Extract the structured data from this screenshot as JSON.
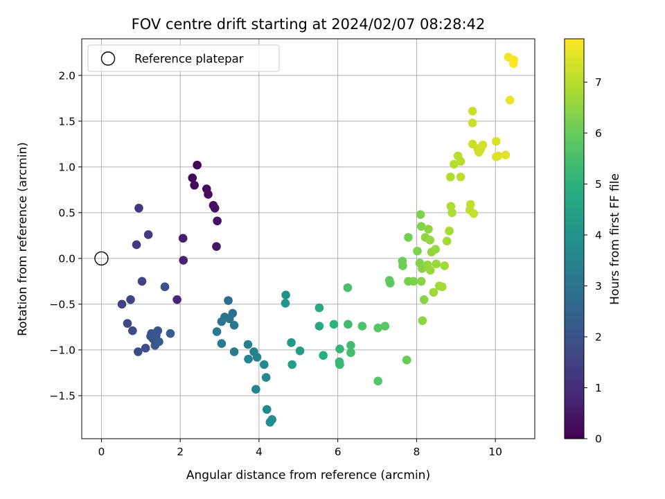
{
  "chart_data": {
    "type": "scatter",
    "title": "FOV centre drift starting at 2024/02/07 08:28:42",
    "xlabel": "Angular distance from reference (arcmin)",
    "ylabel": "Rotation from reference (arcmin)",
    "xlim": [
      -0.5,
      11.0
    ],
    "ylim": [
      -1.97,
      2.4
    ],
    "x_ticks": [
      0,
      2,
      4,
      6,
      8,
      10
    ],
    "x_tick_labels": [
      "0",
      "2",
      "4",
      "6",
      "8",
      "10"
    ],
    "y_ticks": [
      -1.5,
      -1.0,
      -0.5,
      0.0,
      0.5,
      1.0,
      1.5,
      2.0
    ],
    "y_tick_labels": [
      "−1.5",
      "−1.0",
      "−0.5",
      "0.0",
      "0.5",
      "1.0",
      "1.5",
      "2.0"
    ],
    "grid": true,
    "legend": {
      "position": "top-left",
      "entries": [
        "Reference platepar"
      ]
    },
    "reference_point": {
      "name": "Reference platepar",
      "x": 0.0,
      "y": 0.0,
      "marker": "open-circle"
    },
    "colorbar": {
      "label": "Hours from first FF file",
      "colormap": "viridis",
      "range": [
        0,
        7.85
      ],
      "ticks": [
        0,
        1,
        2,
        3,
        4,
        5,
        6,
        7
      ],
      "tick_labels": [
        "0",
        "1",
        "2",
        "3",
        "4",
        "5",
        "6",
        "7"
      ]
    },
    "points": [
      {
        "x": 2.43,
        "y": 1.02,
        "c": 0.05
      },
      {
        "x": 2.31,
        "y": 0.88,
        "c": 0.1
      },
      {
        "x": 2.36,
        "y": 0.8,
        "c": 0.15
      },
      {
        "x": 2.67,
        "y": 0.76,
        "c": 0.2
      },
      {
        "x": 2.71,
        "y": 0.7,
        "c": 0.25
      },
      {
        "x": 2.84,
        "y": 0.58,
        "c": 0.3
      },
      {
        "x": 2.88,
        "y": 0.55,
        "c": 0.35
      },
      {
        "x": 2.94,
        "y": 0.41,
        "c": 0.4
      },
      {
        "x": 2.92,
        "y": 0.13,
        "c": 0.45
      },
      {
        "x": 2.07,
        "y": 0.22,
        "c": 0.65
      },
      {
        "x": 2.08,
        "y": -0.02,
        "c": 0.75
      },
      {
        "x": 1.92,
        "y": -0.45,
        "c": 0.85
      },
      {
        "x": 0.95,
        "y": 0.55,
        "c": 1.2
      },
      {
        "x": 0.89,
        "y": 0.15,
        "c": 1.3
      },
      {
        "x": 1.19,
        "y": 0.26,
        "c": 1.35
      },
      {
        "x": 1.03,
        "y": -0.25,
        "c": 1.55
      },
      {
        "x": 1.61,
        "y": -0.31,
        "c": 1.9
      },
      {
        "x": 0.52,
        "y": -0.5,
        "c": 1.5
      },
      {
        "x": 0.74,
        "y": -0.45,
        "c": 1.6
      },
      {
        "x": 0.66,
        "y": -0.71,
        "c": 1.7
      },
      {
        "x": 0.79,
        "y": -0.79,
        "c": 1.75
      },
      {
        "x": 0.93,
        "y": -1.02,
        "c": 1.8
      },
      {
        "x": 1.12,
        "y": -0.98,
        "c": 1.85
      },
      {
        "x": 1.25,
        "y": -0.85,
        "c": 1.9
      },
      {
        "x": 1.27,
        "y": -0.82,
        "c": 1.95
      },
      {
        "x": 1.31,
        "y": -0.88,
        "c": 2.0
      },
      {
        "x": 1.36,
        "y": -0.95,
        "c": 2.05
      },
      {
        "x": 1.39,
        "y": -0.84,
        "c": 2.1
      },
      {
        "x": 1.43,
        "y": -0.79,
        "c": 2.15
      },
      {
        "x": 1.46,
        "y": -0.91,
        "c": 2.2
      },
      {
        "x": 1.75,
        "y": -0.82,
        "c": 2.3
      },
      {
        "x": 3.22,
        "y": -0.46,
        "c": 2.8
      },
      {
        "x": 3.33,
        "y": -0.6,
        "c": 2.9
      },
      {
        "x": 3.25,
        "y": -0.66,
        "c": 2.95
      },
      {
        "x": 3.13,
        "y": -0.64,
        "c": 3.0
      },
      {
        "x": 3.05,
        "y": -0.69,
        "c": 3.05
      },
      {
        "x": 3.37,
        "y": -0.73,
        "c": 3.1
      },
      {
        "x": 2.93,
        "y": -0.8,
        "c": 3.15
      },
      {
        "x": 3.05,
        "y": -0.93,
        "c": 3.2
      },
      {
        "x": 3.37,
        "y": -1.02,
        "c": 3.3
      },
      {
        "x": 3.72,
        "y": -0.94,
        "c": 3.4
      },
      {
        "x": 3.87,
        "y": -1.02,
        "c": 3.45
      },
      {
        "x": 3.73,
        "y": -1.1,
        "c": 3.5
      },
      {
        "x": 3.95,
        "y": -1.08,
        "c": 3.55
      },
      {
        "x": 4.13,
        "y": -1.16,
        "c": 3.6
      },
      {
        "x": 4.18,
        "y": -1.3,
        "c": 3.65
      },
      {
        "x": 3.92,
        "y": -1.43,
        "c": 3.6
      },
      {
        "x": 4.2,
        "y": -1.65,
        "c": 3.75
      },
      {
        "x": 4.33,
        "y": -1.76,
        "c": 3.8
      },
      {
        "x": 4.28,
        "y": -1.79,
        "c": 3.85
      },
      {
        "x": 4.68,
        "y": -0.4,
        "c": 4.0
      },
      {
        "x": 4.67,
        "y": -0.49,
        "c": 4.05
      },
      {
        "x": 4.82,
        "y": -0.92,
        "c": 4.2
      },
      {
        "x": 5.04,
        "y": -1.01,
        "c": 4.3
      },
      {
        "x": 4.84,
        "y": -1.16,
        "c": 4.35
      },
      {
        "x": 5.53,
        "y": -0.54,
        "c": 4.7
      },
      {
        "x": 5.53,
        "y": -0.74,
        "c": 4.75
      },
      {
        "x": 5.63,
        "y": -1.06,
        "c": 4.85
      },
      {
        "x": 5.9,
        "y": -0.72,
        "c": 5.0
      },
      {
        "x": 6.05,
        "y": -0.99,
        "c": 5.15
      },
      {
        "x": 6.04,
        "y": -1.13,
        "c": 5.2
      },
      {
        "x": 6.05,
        "y": -1.16,
        "c": 5.25
      },
      {
        "x": 6.26,
        "y": -0.72,
        "c": 5.35
      },
      {
        "x": 6.33,
        "y": -0.95,
        "c": 5.4
      },
      {
        "x": 6.33,
        "y": -1.03,
        "c": 5.45
      },
      {
        "x": 6.25,
        "y": -0.32,
        "c": 5.5
      },
      {
        "x": 6.62,
        "y": -0.74,
        "c": 5.6
      },
      {
        "x": 7.02,
        "y": -0.76,
        "c": 5.75
      },
      {
        "x": 7.2,
        "y": -0.74,
        "c": 5.8
      },
      {
        "x": 7.02,
        "y": -1.34,
        "c": 5.75
      },
      {
        "x": 7.31,
        "y": -0.24,
        "c": 5.85
      },
      {
        "x": 7.33,
        "y": -0.27,
        "c": 5.9
      },
      {
        "x": 7.75,
        "y": -1.11,
        "c": 6.0
      },
      {
        "x": 7.64,
        "y": -0.03,
        "c": 6.05
      },
      {
        "x": 7.65,
        "y": -0.08,
        "c": 6.1
      },
      {
        "x": 7.79,
        "y": 0.23,
        "c": 6.15
      },
      {
        "x": 7.79,
        "y": -0.25,
        "c": 6.2
      },
      {
        "x": 7.92,
        "y": -0.25,
        "c": 6.25
      },
      {
        "x": 8.1,
        "y": 0.48,
        "c": 6.3
      },
      {
        "x": 8.12,
        "y": 0.35,
        "c": 6.35
      },
      {
        "x": 8.02,
        "y": 0.08,
        "c": 6.3
      },
      {
        "x": 8.08,
        "y": -0.05,
        "c": 6.35
      },
      {
        "x": 8.14,
        "y": -0.11,
        "c": 6.4
      },
      {
        "x": 8.12,
        "y": -0.25,
        "c": 6.4
      },
      {
        "x": 8.19,
        "y": -0.45,
        "c": 6.45
      },
      {
        "x": 8.15,
        "y": -0.68,
        "c": 6.45
      },
      {
        "x": 8.22,
        "y": 0.23,
        "c": 6.5
      },
      {
        "x": 8.3,
        "y": 0.32,
        "c": 6.5
      },
      {
        "x": 8.34,
        "y": 0.2,
        "c": 6.55
      },
      {
        "x": 8.38,
        "y": 0.07,
        "c": 6.55
      },
      {
        "x": 8.48,
        "y": 0.1,
        "c": 6.6
      },
      {
        "x": 8.28,
        "y": -0.07,
        "c": 6.6
      },
      {
        "x": 8.35,
        "y": -0.13,
        "c": 6.65
      },
      {
        "x": 8.5,
        "y": -0.06,
        "c": 6.65
      },
      {
        "x": 8.43,
        "y": -0.37,
        "c": 6.7
      },
      {
        "x": 8.58,
        "y": -0.3,
        "c": 6.7
      },
      {
        "x": 8.65,
        "y": -0.31,
        "c": 6.75
      },
      {
        "x": 8.71,
        "y": -0.08,
        "c": 6.75
      },
      {
        "x": 8.77,
        "y": 0.19,
        "c": 6.8
      },
      {
        "x": 8.83,
        "y": 0.3,
        "c": 6.8
      },
      {
        "x": 8.87,
        "y": 0.57,
        "c": 6.85
      },
      {
        "x": 8.9,
        "y": 0.5,
        "c": 6.85
      },
      {
        "x": 8.86,
        "y": 0.89,
        "c": 6.9
      },
      {
        "x": 8.95,
        "y": 1.03,
        "c": 6.95
      },
      {
        "x": 9.05,
        "y": 1.12,
        "c": 7.0
      },
      {
        "x": 9.12,
        "y": 1.06,
        "c": 7.0
      },
      {
        "x": 9.12,
        "y": 0.89,
        "c": 7.05
      },
      {
        "x": 9.37,
        "y": 0.59,
        "c": 7.1
      },
      {
        "x": 9.35,
        "y": 0.53,
        "c": 7.1
      },
      {
        "x": 9.45,
        "y": 0.49,
        "c": 7.15
      },
      {
        "x": 9.42,
        "y": 1.61,
        "c": 7.2
      },
      {
        "x": 9.42,
        "y": 1.48,
        "c": 7.2
      },
      {
        "x": 9.42,
        "y": 1.25,
        "c": 7.25
      },
      {
        "x": 9.55,
        "y": 1.2,
        "c": 7.25
      },
      {
        "x": 9.58,
        "y": 1.16,
        "c": 7.3
      },
      {
        "x": 9.62,
        "y": 1.19,
        "c": 7.3
      },
      {
        "x": 9.68,
        "y": 1.24,
        "c": 7.35
      },
      {
        "x": 10.02,
        "y": 1.28,
        "c": 7.4
      },
      {
        "x": 10.02,
        "y": 1.11,
        "c": 7.45
      },
      {
        "x": 10.07,
        "y": 1.12,
        "c": 7.45
      },
      {
        "x": 10.26,
        "y": 1.13,
        "c": 7.5
      },
      {
        "x": 10.37,
        "y": 1.73,
        "c": 7.55
      },
      {
        "x": 10.33,
        "y": 2.2,
        "c": 7.7
      },
      {
        "x": 10.47,
        "y": 2.17,
        "c": 7.75
      },
      {
        "x": 10.46,
        "y": 2.13,
        "c": 7.8
      }
    ]
  }
}
